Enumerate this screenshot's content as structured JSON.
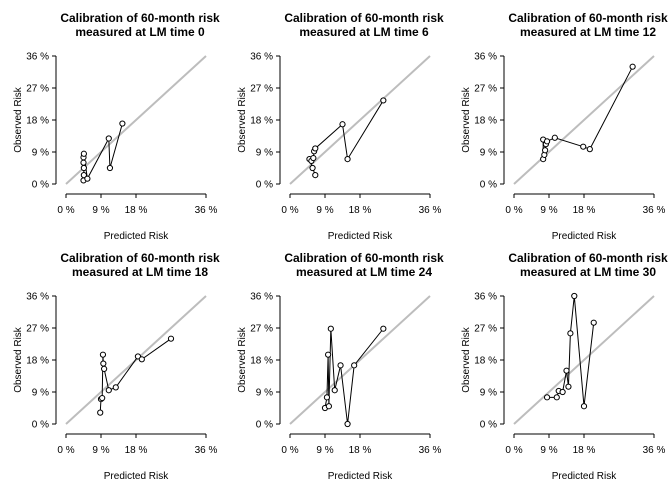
{
  "chart_data": [
    {
      "type": "scatter",
      "title": [
        "Calibration of 60-month risk",
        "measured at LM time 0"
      ],
      "xlabel": "Predicted Risk",
      "ylabel": "Observed Risk",
      "xlim": [
        0,
        36
      ],
      "ylim": [
        0,
        36
      ],
      "xticks": [
        "0 %",
        "9 %",
        "18 %",
        "36 %"
      ],
      "yticks": [
        "0 %",
        "9 %",
        "18 %",
        "27 %",
        "36 %"
      ],
      "reference_line": "y = x",
      "points": [
        [
          4.5,
          1.0
        ],
        [
          4.6,
          2.5
        ],
        [
          4.6,
          4.5
        ],
        [
          4.5,
          6.0
        ],
        [
          4.5,
          7.5
        ],
        [
          4.6,
          8.5
        ],
        [
          5.5,
          1.5
        ],
        [
          11.0,
          12.8
        ],
        [
          11.3,
          4.5
        ],
        [
          14.5,
          17.0
        ]
      ]
    },
    {
      "type": "scatter",
      "title": [
        "Calibration of 60-month risk",
        "measured at LM time 6"
      ],
      "xlabel": "Predicted Risk",
      "ylabel": "Observed Risk",
      "xlim": [
        0,
        36
      ],
      "ylim": [
        0,
        36
      ],
      "xticks": [
        "0 %",
        "9 %",
        "18 %",
        "36 %"
      ],
      "yticks": [
        "0 %",
        "9 %",
        "18 %",
        "27 %",
        "36 %"
      ],
      "reference_line": "y = x",
      "points": [
        [
          6.5,
          2.5
        ],
        [
          5.8,
          4.5
        ],
        [
          5.0,
          7.0
        ],
        [
          5.5,
          6.5
        ],
        [
          6.0,
          7.3
        ],
        [
          6.2,
          9.2
        ],
        [
          6.5,
          10.0
        ],
        [
          13.5,
          16.8
        ],
        [
          14.8,
          7.0
        ],
        [
          24.0,
          23.5
        ]
      ]
    },
    {
      "type": "scatter",
      "title": [
        "Calibration of 60-month risk",
        "measured at LM time 12"
      ],
      "xlabel": "Predicted Risk",
      "ylabel": "Observed Risk",
      "xlim": [
        0,
        36
      ],
      "ylim": [
        0,
        36
      ],
      "xticks": [
        "0 %",
        "9 %",
        "18 %",
        "36 %"
      ],
      "yticks": [
        "0 %",
        "9 %",
        "18 %",
        "27 %",
        "36 %"
      ],
      "reference_line": "y = x",
      "points": [
        [
          7.5,
          12.5
        ],
        [
          7.5,
          7.0
        ],
        [
          7.8,
          8.2
        ],
        [
          8.0,
          9.5
        ],
        [
          8.2,
          11.2
        ],
        [
          8.5,
          12.0
        ],
        [
          10.5,
          13.0
        ],
        [
          17.8,
          10.5
        ],
        [
          19.5,
          9.8
        ],
        [
          30.5,
          33.0
        ]
      ]
    },
    {
      "type": "scatter",
      "title": [
        "Calibration of 60-month risk",
        "measured at LM time 18"
      ],
      "xlabel": "Predicted Risk",
      "ylabel": "Observed Risk",
      "xlim": [
        0,
        36
      ],
      "ylim": [
        0,
        36
      ],
      "xticks": [
        "0 %",
        "9 %",
        "18 %",
        "36 %"
      ],
      "yticks": [
        "0 %",
        "9 %",
        "18 %",
        "27 %",
        "36 %"
      ],
      "reference_line": "y = x",
      "points": [
        [
          8.8,
          3.2
        ],
        [
          9.0,
          7.0
        ],
        [
          9.3,
          7.3
        ],
        [
          9.5,
          19.5
        ],
        [
          9.6,
          17.0
        ],
        [
          9.8,
          15.5
        ],
        [
          11.0,
          9.5
        ],
        [
          12.8,
          10.3
        ],
        [
          18.5,
          19.0
        ],
        [
          19.5,
          18.2
        ],
        [
          27.0,
          24.0
        ]
      ]
    },
    {
      "type": "scatter",
      "title": [
        "Calibration of 60-month risk",
        "measured at LM time 24"
      ],
      "xlabel": "Predicted Risk",
      "ylabel": "Observed Risk",
      "xlim": [
        0,
        36
      ],
      "ylim": [
        0,
        36
      ],
      "xticks": [
        "0 %",
        "9 %",
        "18 %",
        "36 %"
      ],
      "yticks": [
        "0 %",
        "9 %",
        "18 %",
        "27 %",
        "36 %"
      ],
      "reference_line": "y = x",
      "points": [
        [
          9.0,
          4.5
        ],
        [
          9.5,
          7.5
        ],
        [
          9.8,
          19.5
        ],
        [
          10.0,
          5.0
        ],
        [
          10.5,
          26.8
        ],
        [
          11.5,
          9.5
        ],
        [
          13.0,
          16.5
        ],
        [
          14.8,
          0.0
        ],
        [
          16.5,
          16.5
        ],
        [
          24.0,
          26.8
        ]
      ]
    },
    {
      "type": "scatter",
      "title": [
        "Calibration of 60-month risk",
        "measured at LM time 30"
      ],
      "xlabel": "Predicted Risk",
      "ylabel": "Observed Risk",
      "xlim": [
        0,
        36
      ],
      "ylim": [
        0,
        36
      ],
      "xticks": [
        "0 %",
        "9 %",
        "18 %",
        "36 %"
      ],
      "yticks": [
        "0 %",
        "9 %",
        "18 %",
        "27 %",
        "36 %"
      ],
      "reference_line": "y = x",
      "points": [
        [
          8.5,
          7.5
        ],
        [
          11.0,
          7.5
        ],
        [
          11.5,
          9.3
        ],
        [
          12.5,
          9.0
        ],
        [
          13.5,
          15.0
        ],
        [
          14.0,
          10.5
        ],
        [
          14.5,
          25.5
        ],
        [
          15.5,
          36.0
        ],
        [
          18.0,
          5.0
        ],
        [
          20.5,
          28.5
        ]
      ]
    }
  ]
}
